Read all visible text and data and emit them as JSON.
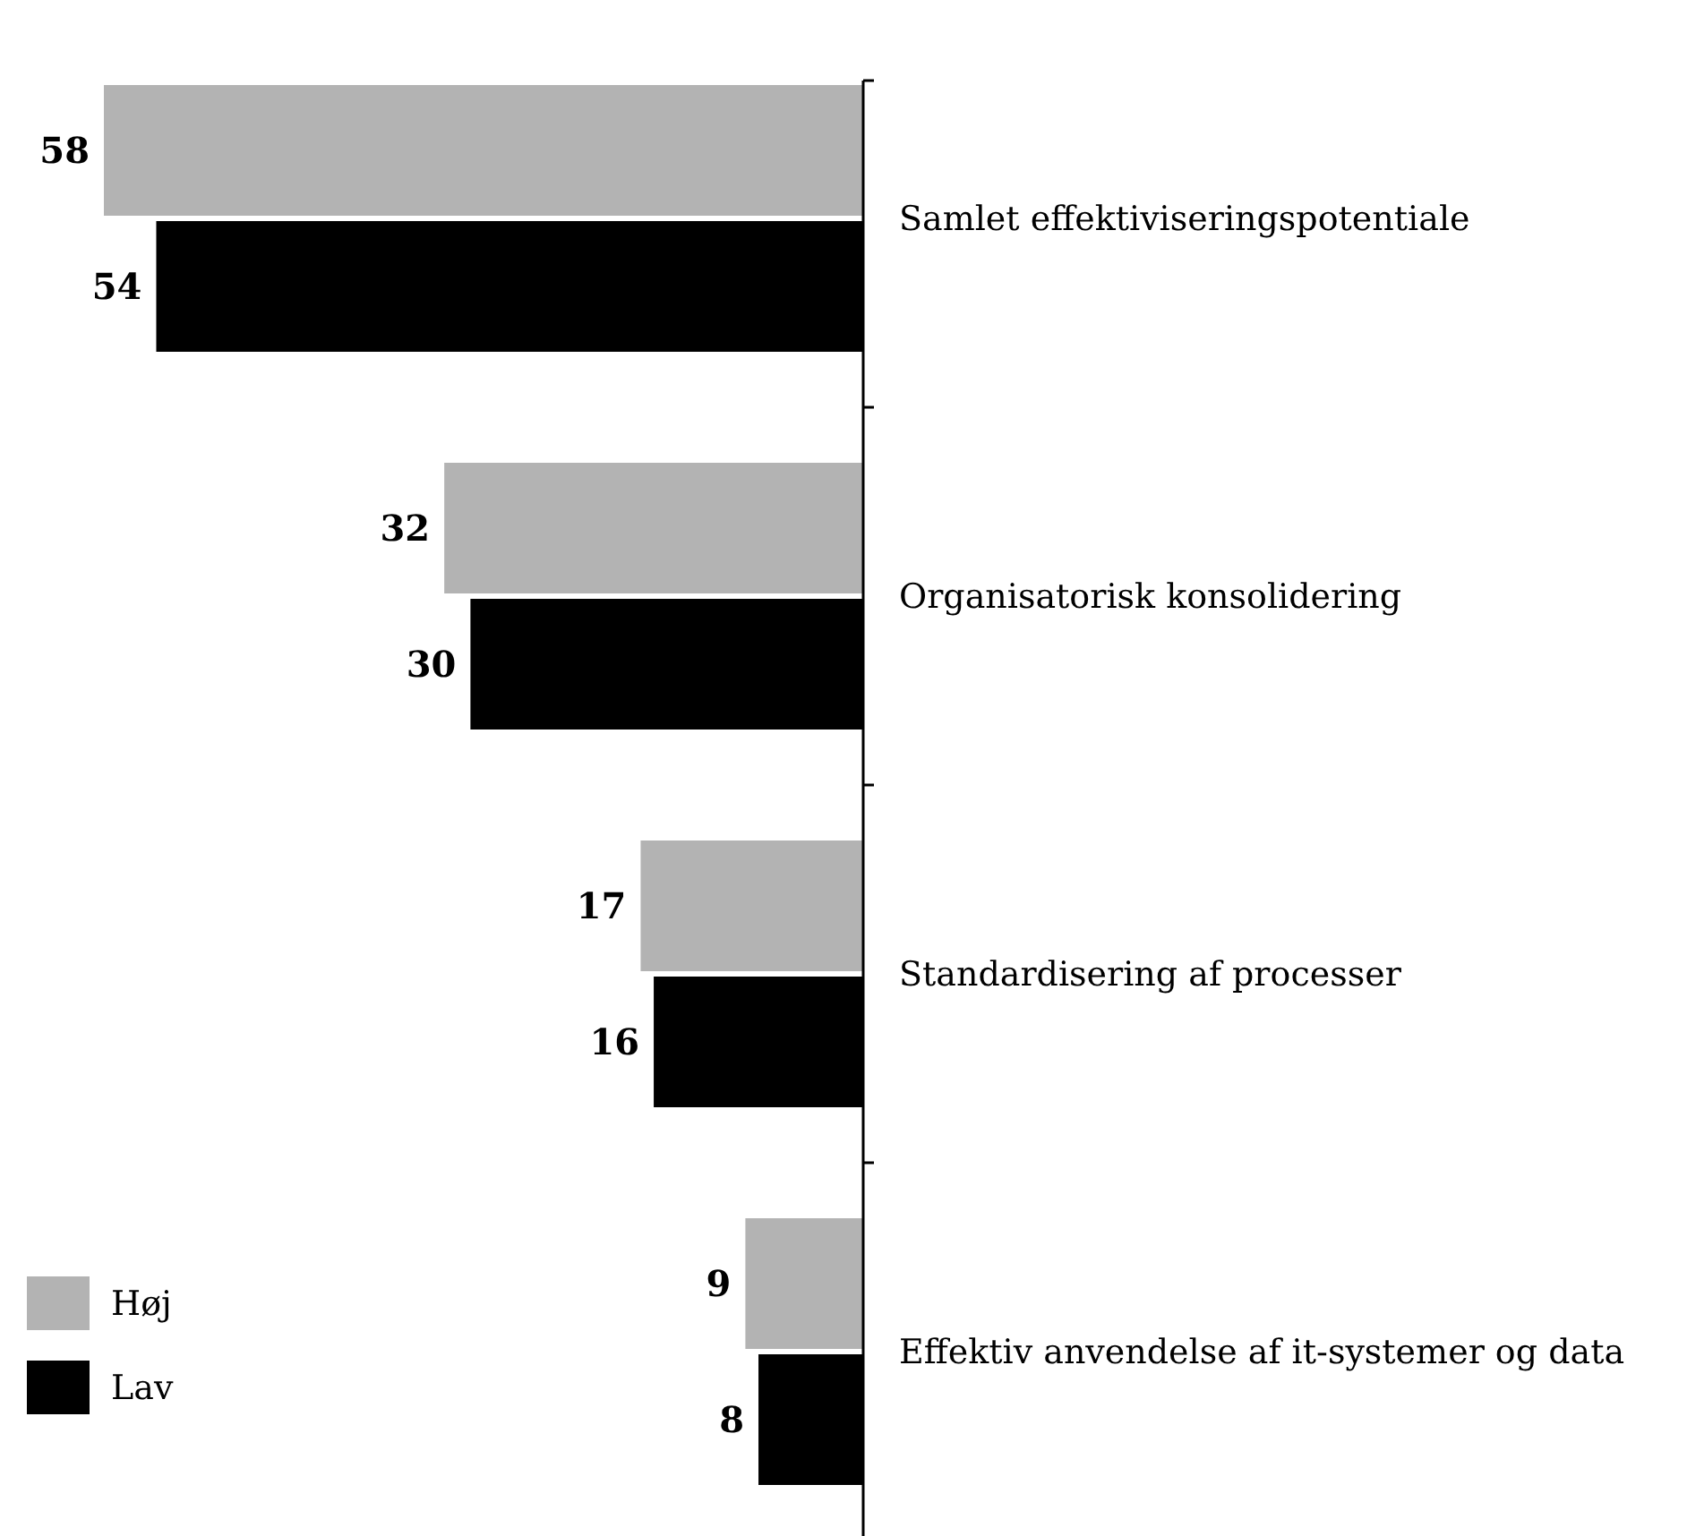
{
  "chart_data": {
    "type": "bar",
    "orientation": "horizontal",
    "categories": [
      "Samlet effektiviseringspotentiale",
      "Organisatorisk konsolidering",
      "Standardisering af processer",
      "Effektiv anvendelse af it-systemer og data"
    ],
    "series": [
      {
        "name": "Høj",
        "color": "#b3b3b3",
        "values": [
          58,
          32,
          17,
          9
        ]
      },
      {
        "name": "Lav",
        "color": "#000000",
        "values": [
          54,
          30,
          16,
          8
        ]
      }
    ],
    "data_labels": true,
    "legend": "bottom left"
  }
}
